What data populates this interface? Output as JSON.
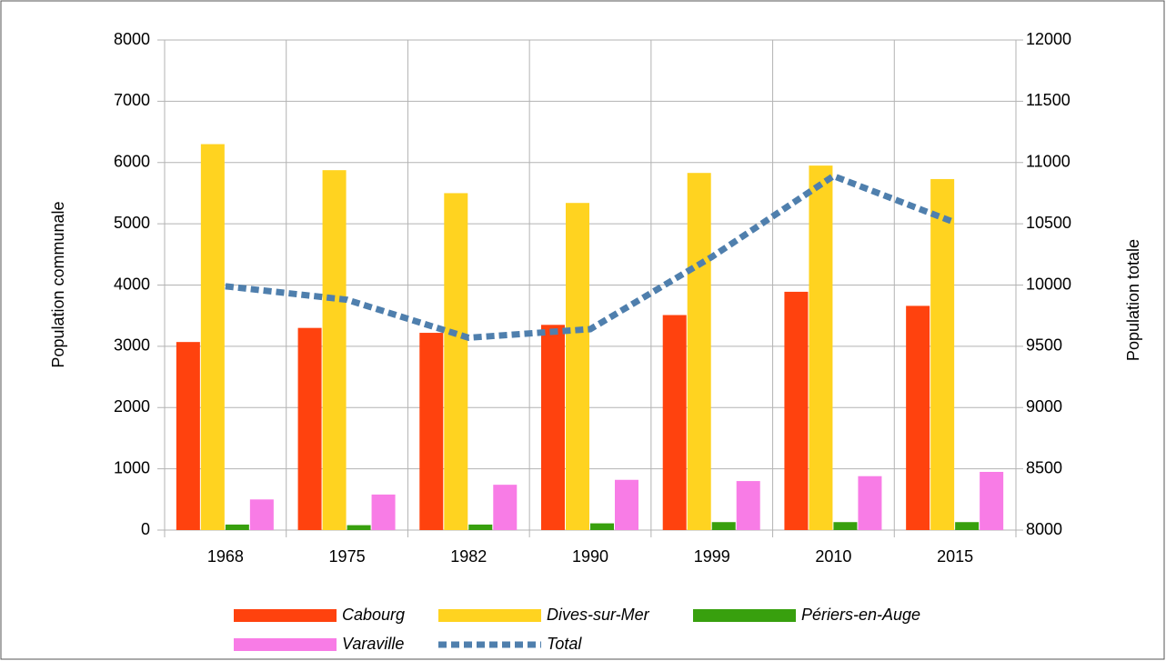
{
  "chart_data": {
    "type": "bar",
    "categories": [
      "1968",
      "1975",
      "1982",
      "1990",
      "1999",
      "2010",
      "2015"
    ],
    "ylabel": "Population  communale",
    "y2label": "Population totale",
    "ylim": [
      0,
      8000
    ],
    "yticks": [
      0,
      1000,
      2000,
      3000,
      4000,
      5000,
      6000,
      7000,
      8000
    ],
    "y2lim": [
      8000,
      12000
    ],
    "y2ticks": [
      8000,
      8500,
      9000,
      9500,
      10000,
      10500,
      11000,
      11500,
      12000
    ],
    "grid": true,
    "legend": "bottom",
    "series": [
      {
        "name": "Cabourg",
        "color": "#ff420e",
        "values": [
          3070,
          3300,
          3220,
          3350,
          3510,
          3890,
          3660
        ]
      },
      {
        "name": "Dives-sur-Mer",
        "color": "#ffd320",
        "values": [
          6300,
          5875,
          5500,
          5340,
          5830,
          5950,
          5730
        ]
      },
      {
        "name": "Périers-en-Auge",
        "color": "#38a00e",
        "values": [
          90,
          80,
          90,
          110,
          130,
          130,
          130
        ]
      },
      {
        "name": "Varaville",
        "color": "#f87ce6",
        "values": [
          500,
          580,
          740,
          820,
          800,
          880,
          950
        ]
      },
      {
        "name": "Total",
        "color": "#4f7fad",
        "type": "line",
        "axis": "y2",
        "values": [
          9990,
          9880,
          9570,
          9640,
          10230,
          10890,
          10510
        ]
      }
    ]
  }
}
